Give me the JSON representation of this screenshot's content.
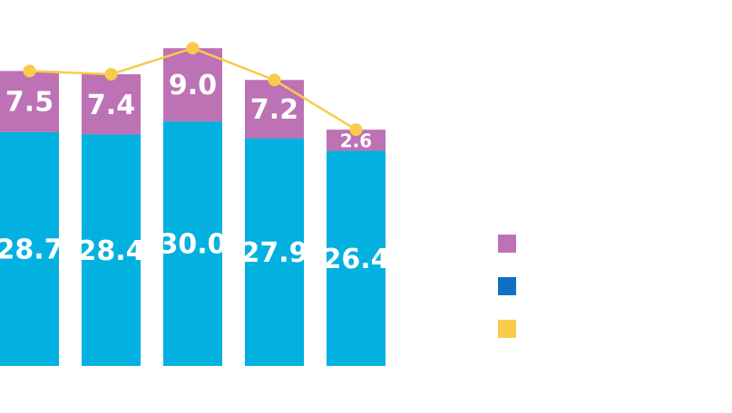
{
  "chart_data": {
    "type": "bar",
    "stacked": true,
    "categories": [
      "",
      "",
      "",
      "",
      ""
    ],
    "series": [
      {
        "kind": "bar",
        "color": "#02b1df",
        "values": [
          28.7,
          28.4,
          30.0,
          27.9,
          26.4
        ]
      },
      {
        "kind": "bar",
        "color": "#bd72b5",
        "values": [
          7.5,
          7.4,
          9.0,
          7.2,
          2.6
        ]
      },
      {
        "kind": "line",
        "color": "#f8cb4b",
        "values": [
          36.2,
          35.8,
          39.0,
          35.1,
          29.0
        ]
      }
    ],
    "legend": {
      "placement": "right",
      "swatches": [
        "#bd72b5",
        "#1170c4",
        "#f8cb4b"
      ]
    },
    "ylim": [
      0,
      39.8
    ],
    "grid": false
  }
}
